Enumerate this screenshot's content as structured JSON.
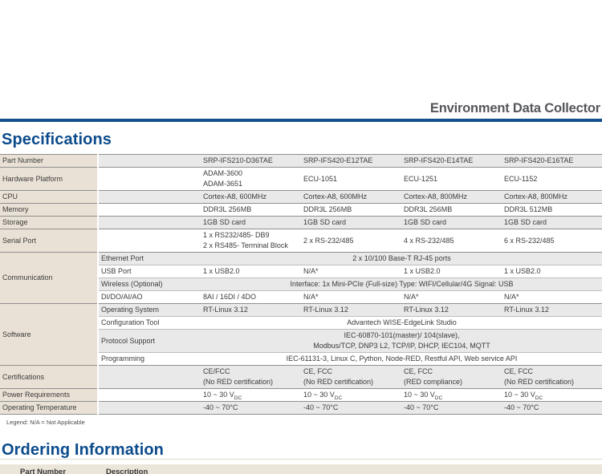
{
  "colors": {
    "accent_blue": "#14528f",
    "heading_blue": "#0b4b8c",
    "title_gray": "#55565a",
    "label_beige": "#e9e1d5",
    "header_beige": "#ece5da",
    "stripe_gray": "#e9e9e9"
  },
  "header": {
    "product_title": "Environment Data Collector"
  },
  "specifications": {
    "heading": "Specifications",
    "legend": "Legend: N/A = Not Applicable",
    "groups": [
      {
        "label": "Part Number",
        "rows": [
          {
            "cells": [
              "SRP-IFS210-D36TAE",
              "SRP-IFS420-E12TAE",
              "SRP-IFS420-E14TAE",
              "SRP-IFS420-E16TAE"
            ]
          }
        ]
      },
      {
        "label": "Hardware Platform",
        "rows": [
          {
            "cells": [
              [
                "ADAM-3600",
                "ADAM-3651"
              ],
              "ECU-1051",
              "ECU-1251",
              "ECU-1152"
            ]
          }
        ]
      },
      {
        "label": "CPU",
        "rows": [
          {
            "cells": [
              "Cortex-A8, 600MHz",
              "Cortex-A8, 600MHz",
              "Cortex-A8, 800MHz",
              "Cortex-A8, 800MHz"
            ]
          }
        ]
      },
      {
        "label": "Memory",
        "rows": [
          {
            "cells": [
              "DDR3L 256MB",
              "DDR3L 256MB",
              "DDR3L 256MB",
              "DDR3L 512MB"
            ]
          }
        ]
      },
      {
        "label": "Storage",
        "rows": [
          {
            "cells": [
              "1GB SD card",
              "1GB SD card",
              "1GB SD card",
              "1GB SD card"
            ]
          }
        ]
      },
      {
        "label": "Serial Port",
        "rows": [
          {
            "cells": [
              [
                "1 x RS232/485- DB9",
                "2 x RS485- Terminal Block"
              ],
              "2 x RS-232/485",
              "4 x RS-232/485",
              "6 x RS-232/485"
            ]
          }
        ]
      },
      {
        "label": "Communication",
        "rows": [
          {
            "sub": "Ethernet Port",
            "span": "2 x 10/100 Base-T RJ-45 ports"
          },
          {
            "sub": "USB Port",
            "cells": [
              "1 x USB2.0",
              "N/A*",
              "1 x USB2.0",
              "1 x USB2.0"
            ]
          },
          {
            "sub": "Wireless (Optional)",
            "span": "Interface: 1x Mini-PCIe (Full-size) Type: WIFI/Cellular/4G Signal: USB"
          },
          {
            "sub": "DI/DO/AI/AO",
            "cells": [
              "8AI / 16DI / 4DO",
              "N/A*",
              "N/A*",
              "N/A*"
            ]
          }
        ]
      },
      {
        "label": "Software",
        "rows": [
          {
            "sub": "Operating System",
            "cells": [
              "RT-Linux 3.12",
              "RT-Linux 3.12",
              "RT-Linux 3.12",
              "RT-Linux 3.12"
            ]
          },
          {
            "sub": "Configuration Tool",
            "span": "Advantech WISE-EdgeLink Studio"
          },
          {
            "sub": "Protocol Support",
            "span": [
              "IEC-60870-101(master)/ 104(slave),",
              "Modbus/TCP, DNP3 L2, TCP/IP, DHCP, IEC104, MQTT"
            ]
          },
          {
            "sub": "Programming",
            "span": "IEC-61131-3, Linux C, Python, Node-RED, Restful API, Web service API"
          }
        ]
      },
      {
        "label": "Certifications",
        "rows": [
          {
            "cells": [
              [
                "CE/FCC",
                "(No RED certification)"
              ],
              [
                "CE, FCC",
                "(No RED certification)"
              ],
              [
                "CE, FCC",
                "(RED compliance)"
              ],
              [
                "CE, FCC",
                "(No RED certification)"
              ]
            ]
          }
        ]
      },
      {
        "label": "Power Requirements",
        "rows": [
          {
            "cells": [
              "10 ~ 30 V[DC]",
              "10 ~ 30 V[DC]",
              "10 ~ 30 V[DC]",
              "10 ~ 30 V[DC]"
            ]
          }
        ]
      },
      {
        "label": "Operating Temperature",
        "rows": [
          {
            "cells": [
              "-40 ~ 70°C",
              "-40 ~ 70°C",
              "-40 ~ 70°C",
              "-40 ~ 70°C"
            ]
          }
        ]
      }
    ]
  },
  "ordering": {
    "heading": "Ordering Information",
    "columns": [
      "Part Number",
      "Description"
    ]
  }
}
